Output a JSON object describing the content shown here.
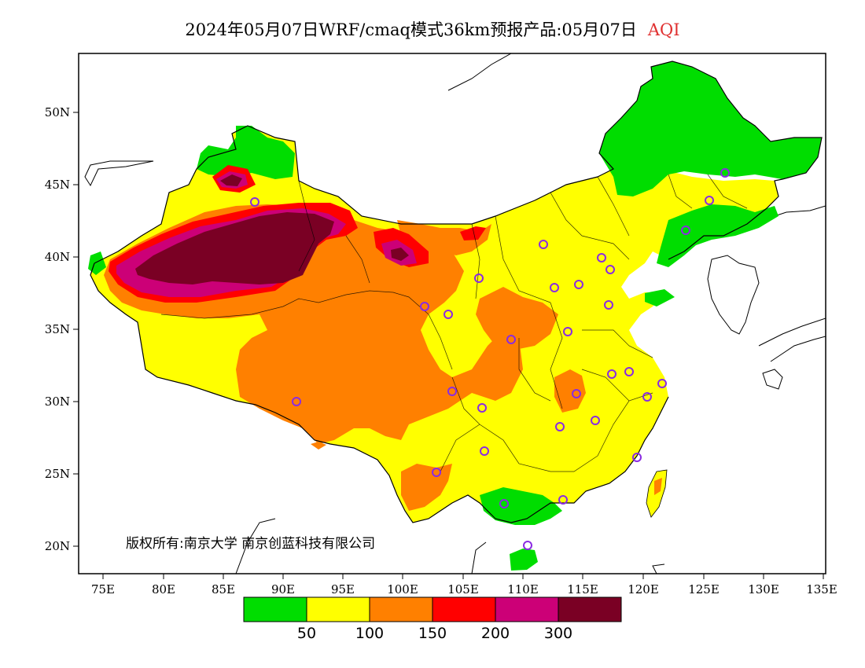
{
  "title": {
    "main": "2024年05月07日WRF/cmaq模式36km预报产品:05月07日",
    "variable": "AQI"
  },
  "copyright": "版权所有:南京大学 南京创蓝科技有限公司",
  "axes": {
    "x_ticks": [
      "75E",
      "80E",
      "85E",
      "90E",
      "95E",
      "100E",
      "105E",
      "110E",
      "115E",
      "120E",
      "125E",
      "130E",
      "135E"
    ],
    "y_ticks": [
      "50N",
      "45N",
      "40N",
      "35N",
      "30N",
      "25N",
      "20N"
    ]
  },
  "colorbar": {
    "colors": [
      "#00dd00",
      "#ffff00",
      "#ff8000",
      "#ff0000",
      "#cc0077",
      "#7a0024"
    ],
    "labels": [
      "50",
      "100",
      "150",
      "200",
      "300"
    ]
  },
  "colors": {
    "good": "#00dd00",
    "moderate": "#ffff00",
    "usg": "#ff8000",
    "unhealthy": "#ff0000",
    "very_unhealthy": "#cc0077",
    "hazardous": "#7a0024",
    "station_marker": "#8a2be2"
  }
}
